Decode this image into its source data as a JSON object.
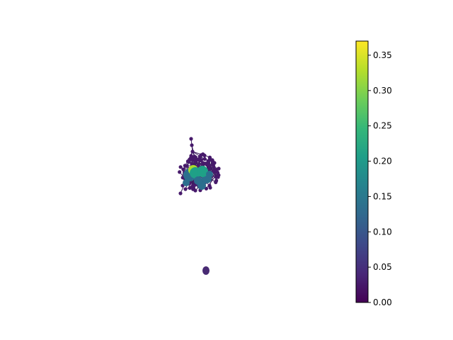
{
  "figure": {
    "title": "",
    "colormap": "viridis",
    "node_outline": "none"
  },
  "colorbar": {
    "vmin": 0.0,
    "vmax": 0.37,
    "ticks": [
      {
        "value": 0.0,
        "label": "0.00"
      },
      {
        "value": 0.05,
        "label": "0.05"
      },
      {
        "value": 0.1,
        "label": "0.10"
      },
      {
        "value": 0.15,
        "label": "0.15"
      },
      {
        "value": 0.2,
        "label": "0.20"
      },
      {
        "value": 0.25,
        "label": "0.25"
      },
      {
        "value": 0.3,
        "label": "0.30"
      },
      {
        "value": 0.35,
        "label": "0.35"
      }
    ],
    "stops": [
      "#440154",
      "#482878",
      "#3e4989",
      "#31688e",
      "#26828e",
      "#1f9e89",
      "#35b779",
      "#6ece58",
      "#b5de2b",
      "#fde725"
    ]
  },
  "colors": {
    "edge": "#3b1f5e",
    "low_node": "#471a6b",
    "mid_node": "#2c6f8e",
    "high_node": "#1fa187",
    "peak_node": "#a9dc2e",
    "isolated_component": "#482a73"
  }
}
